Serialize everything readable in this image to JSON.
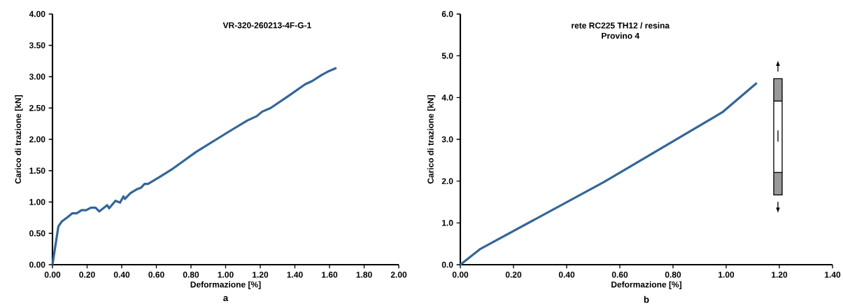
{
  "chart_data": [
    {
      "type": "line",
      "title": "VR-320-260213-4F-G-1",
      "xlabel": "Deformazione [%]",
      "ylabel": "Carico di trazione [kN]",
      "annotations": [
        "a"
      ],
      "x": [
        0,
        0.034,
        0.054,
        0.088,
        0.115,
        0.14,
        0.168,
        0.195,
        0.222,
        0.249,
        0.27,
        0.316,
        0.327,
        0.364,
        0.39,
        0.41,
        0.418,
        0.45,
        0.485,
        0.512,
        0.532,
        0.552,
        0.613,
        0.694,
        0.83,
        1.017,
        1.125,
        1.18,
        1.21,
        1.26,
        1.367,
        1.46,
        1.5,
        1.556,
        1.59,
        1.64
      ],
      "series": [
        {
          "color": "#336699",
          "values": [
            0,
            0.61,
            0.69,
            0.76,
            0.82,
            0.82,
            0.87,
            0.87,
            0.91,
            0.91,
            0.85,
            0.95,
            0.9,
            1.02,
            0.99,
            1.09,
            1.05,
            1.14,
            1.2,
            1.23,
            1.29,
            1.29,
            1.39,
            1.53,
            1.8,
            2.12,
            2.3,
            2.37,
            2.44,
            2.5,
            2.7,
            2.88,
            2.93,
            3.03,
            3.08,
            3.14
          ]
        }
      ],
      "xlim": [
        0,
        2
      ],
      "ylim": [
        0,
        4
      ],
      "xticks": [
        {
          "value": 0,
          "label": "0.00"
        },
        {
          "value": 0.2,
          "label": "0.20"
        },
        {
          "value": 0.4,
          "label": "0.40"
        },
        {
          "value": 0.6,
          "label": "0.60"
        },
        {
          "value": 0.8,
          "label": "0.80"
        },
        {
          "value": 1,
          "label": "1.00"
        },
        {
          "value": 1.2,
          "label": "1.20"
        },
        {
          "value": 1.4,
          "label": "1.40"
        },
        {
          "value": 1.6,
          "label": "1.60"
        },
        {
          "value": 1.8,
          "label": "1.80"
        },
        {
          "value": 2,
          "label": "2.00"
        }
      ],
      "yticks": [
        {
          "value": 0,
          "label": "0.00"
        },
        {
          "value": 0.5,
          "label": "0.50"
        },
        {
          "value": 1,
          "label": "1.00"
        },
        {
          "value": 1.5,
          "label": "1.50"
        },
        {
          "value": 2,
          "label": "2.00"
        },
        {
          "value": 2.5,
          "label": "2.50"
        },
        {
          "value": 3,
          "label": "3.00"
        },
        {
          "value": 3.5,
          "label": "3.50"
        },
        {
          "value": 4,
          "label": "4.00"
        }
      ]
    },
    {
      "type": "line",
      "title": "rete RC225 TH12 / resina",
      "subtitle": "Provino 4",
      "xlabel": "Deformazione [%]",
      "ylabel": "Carico di trazione [kN]",
      "annotations": [
        "b"
      ],
      "x": [
        0,
        0.076,
        0.538,
        0.986,
        1.115
      ],
      "series": [
        {
          "color": "#336699",
          "values": [
            0,
            0.38,
            1.97,
            3.65,
            4.35
          ]
        }
      ],
      "xlim": [
        0,
        1.4
      ],
      "ylim": [
        0,
        6
      ],
      "xticks": [
        {
          "value": 0,
          "label": "0.00"
        },
        {
          "value": 0.2,
          "label": "0.20"
        },
        {
          "value": 0.4,
          "label": "0.40"
        },
        {
          "value": 0.6,
          "label": "0.60"
        },
        {
          "value": 0.8,
          "label": "0.80"
        },
        {
          "value": 1,
          "label": "1.00"
        },
        {
          "value": 1.2,
          "label": "1.20"
        },
        {
          "value": 1.4,
          "label": "1.40"
        }
      ],
      "yticks": [
        {
          "value": 0,
          "label": "0.0"
        },
        {
          "value": 1,
          "label": "1.0"
        },
        {
          "value": 2,
          "label": "2.0"
        },
        {
          "value": 3,
          "label": "3.0"
        },
        {
          "value": 4,
          "label": "4.0"
        },
        {
          "value": 5,
          "label": "5.0"
        },
        {
          "value": 6,
          "label": "6.0"
        }
      ]
    }
  ]
}
